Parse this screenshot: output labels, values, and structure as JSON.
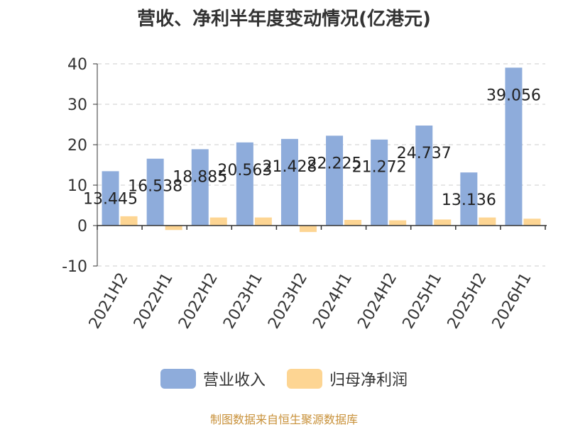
{
  "title": "营收、净利半年度变动情况(亿港元)",
  "source": "制图数据来自恒生聚源数据库",
  "colors": {
    "revenue": "#8eacdb",
    "profit": "#fdd593",
    "axis": "#333333",
    "grid": "#cccccc",
    "text": "#333333"
  },
  "legend": [
    {
      "label": "营业收入",
      "color": "#8eacdb"
    },
    {
      "label": "归母净利润",
      "color": "#fdd593"
    }
  ],
  "chart_data": {
    "type": "bar",
    "title": "营收、净利半年度变动情况(亿港元)",
    "categories": [
      "2021H2",
      "2022H1",
      "2022H2",
      "2023H1",
      "2023H2",
      "2024H1",
      "2024H2",
      "2025H1",
      "2025H2",
      "2026H1"
    ],
    "series": [
      {
        "name": "营业收入",
        "values": [
          13.445,
          16.538,
          18.885,
          20.563,
          21.428,
          22.225,
          21.272,
          24.737,
          13.136,
          39.056
        ],
        "labels": [
          "13.445",
          "16.538",
          "18.885",
          "20.563",
          "21.428",
          "22.225",
          "21.272",
          "24.737",
          "13.136",
          "39.056"
        ]
      },
      {
        "name": "归母净利润",
        "values": [
          2.3,
          -1.1,
          2.0,
          2.0,
          -1.6,
          1.4,
          1.3,
          1.5,
          2.0,
          1.7
        ]
      }
    ],
    "yticks": [
      "-10",
      "0",
      "10",
      "20",
      "30",
      "40"
    ],
    "ylim": [
      -10,
      40
    ],
    "grid": true,
    "legend_position": "bottom"
  }
}
